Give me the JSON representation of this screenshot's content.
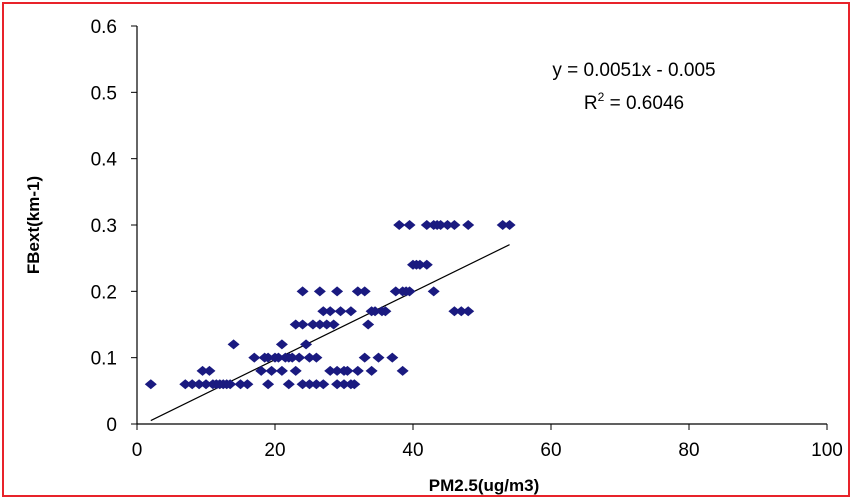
{
  "chart_data": {
    "type": "scatter",
    "xlabel": "PM2.5(ug/m3)",
    "ylabel": "FBext(km-1)",
    "xlim": [
      0,
      100
    ],
    "ylim": [
      0,
      0.6
    ],
    "x_ticks": [
      "0",
      "20",
      "40",
      "60",
      "80",
      "100"
    ],
    "y_ticks": [
      "0",
      "0.1",
      "0.2",
      "0.3",
      "0.4",
      "0.5",
      "0.6"
    ],
    "grid": false,
    "legend": "none",
    "equation": "y = 0.0051x - 0.005",
    "r2_prefix": "R",
    "r2_exp": "2",
    "r2_value": " = 0.6046",
    "trendline": {
      "slope": 0.0051,
      "intercept": -0.005,
      "x_range": [
        2,
        54
      ]
    },
    "marker_color": "#1a1a80",
    "frame_color": "#e8232a",
    "series": [
      {
        "points": [
          [
            2,
            0.06
          ],
          [
            7,
            0.06
          ],
          [
            8,
            0.06
          ],
          [
            9,
            0.06
          ],
          [
            9.5,
            0.08
          ],
          [
            10,
            0.06
          ],
          [
            10.5,
            0.08
          ],
          [
            11,
            0.06
          ],
          [
            11.5,
            0.06
          ],
          [
            12,
            0.06
          ],
          [
            12.5,
            0.06
          ],
          [
            13,
            0.06
          ],
          [
            13.5,
            0.06
          ],
          [
            14,
            0.12
          ],
          [
            15,
            0.06
          ],
          [
            16,
            0.06
          ],
          [
            17,
            0.1
          ],
          [
            18,
            0.08
          ],
          [
            18.5,
            0.1
          ],
          [
            19,
            0.06
          ],
          [
            19,
            0.1
          ],
          [
            19.5,
            0.08
          ],
          [
            20,
            0.1
          ],
          [
            20.5,
            0.1
          ],
          [
            21,
            0.12
          ],
          [
            21,
            0.08
          ],
          [
            21.5,
            0.1
          ],
          [
            22,
            0.06
          ],
          [
            22,
            0.1
          ],
          [
            22.5,
            0.1
          ],
          [
            23,
            0.15
          ],
          [
            23,
            0.08
          ],
          [
            23.5,
            0.1
          ],
          [
            24,
            0.06
          ],
          [
            24,
            0.15
          ],
          [
            24,
            0.2
          ],
          [
            24.5,
            0.12
          ],
          [
            25,
            0.1
          ],
          [
            25,
            0.06
          ],
          [
            25.5,
            0.15
          ],
          [
            26,
            0.1
          ],
          [
            26,
            0.06
          ],
          [
            26.5,
            0.15
          ],
          [
            26.5,
            0.2
          ],
          [
            27,
            0.06
          ],
          [
            27,
            0.17
          ],
          [
            27.5,
            0.15
          ],
          [
            28,
            0.17
          ],
          [
            28,
            0.08
          ],
          [
            28.5,
            0.15
          ],
          [
            29,
            0.2
          ],
          [
            29,
            0.08
          ],
          [
            29,
            0.06
          ],
          [
            29.5,
            0.17
          ],
          [
            30,
            0.08
          ],
          [
            30,
            0.06
          ],
          [
            30.5,
            0.08
          ],
          [
            31,
            0.17
          ],
          [
            31,
            0.06
          ],
          [
            31.5,
            0.06
          ],
          [
            32,
            0.2
          ],
          [
            32,
            0.08
          ],
          [
            33,
            0.2
          ],
          [
            33,
            0.1
          ],
          [
            33.5,
            0.15
          ],
          [
            34,
            0.08
          ],
          [
            34,
            0.17
          ],
          [
            34.5,
            0.17
          ],
          [
            35,
            0.1
          ],
          [
            35.5,
            0.17
          ],
          [
            36,
            0.17
          ],
          [
            37,
            0.1
          ],
          [
            37.5,
            0.2
          ],
          [
            38,
            0.3
          ],
          [
            38.5,
            0.08
          ],
          [
            38.5,
            0.2
          ],
          [
            39,
            0.2
          ],
          [
            39.5,
            0.3
          ],
          [
            39.5,
            0.2
          ],
          [
            40,
            0.24
          ],
          [
            40.5,
            0.24
          ],
          [
            41,
            0.24
          ],
          [
            42,
            0.3
          ],
          [
            42,
            0.24
          ],
          [
            43,
            0.3
          ],
          [
            43,
            0.2
          ],
          [
            43.5,
            0.3
          ],
          [
            44,
            0.3
          ],
          [
            45,
            0.3
          ],
          [
            46,
            0.3
          ],
          [
            46,
            0.17
          ],
          [
            47,
            0.17
          ],
          [
            48,
            0.3
          ],
          [
            48,
            0.17
          ],
          [
            53,
            0.3
          ],
          [
            54,
            0.3
          ]
        ]
      }
    ]
  }
}
